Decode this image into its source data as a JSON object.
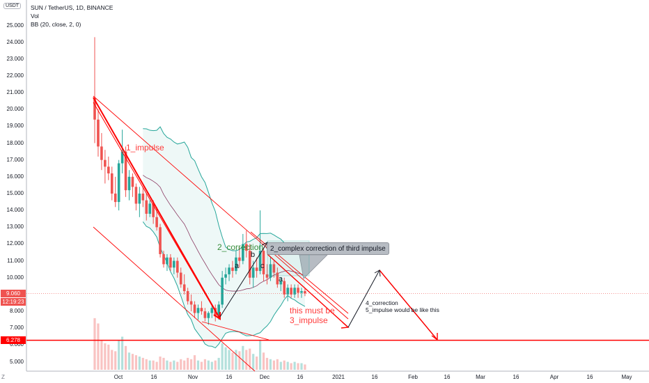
{
  "header": {
    "symbol_line": "SUN / TetherUS, 1D, BINANCE",
    "indicator1": "Vol",
    "indicator2": "BB (20, close, 2, 0)"
  },
  "unit_button": "USDT",
  "corner_label": "Z",
  "price_labels": {
    "last_price": "9.060",
    "countdown": "12:19:23",
    "level": "6.278"
  },
  "annotations": {
    "impulse1": "1_impulse",
    "correction2": "2_correction",
    "wave_a1": "a",
    "wave_b": "b",
    "wave_c": "c",
    "wave_a2": "a",
    "callout": "2_complex correction of third impulse",
    "must_be_line1": "this must be",
    "must_be_line2": "3_impulse",
    "projection_line1": "4_correction",
    "projection_line2": "5_impulse would be like this"
  },
  "colors": {
    "up": "#26a69a",
    "down": "#ef5350",
    "drawing_red": "#ff0000",
    "drawing_green": "#388e3c",
    "bb_band": "#26a69a",
    "bb_basis": "#8b3a62",
    "level_line": "#ff0000"
  },
  "chart_data": {
    "type": "candlestick",
    "title": "SUN / TetherUS, 1D, BINANCE",
    "indicators": [
      "Vol",
      "BB (20, close, 2, 0)"
    ],
    "y_ticks": [
      "5.000",
      "6.000",
      "7.000",
      "8.000",
      "9.000",
      "10.000",
      "11.000",
      "12.000",
      "13.000",
      "14.000",
      "15.000",
      "16.000",
      "17.000",
      "18.000",
      "19.000",
      "20.000",
      "21.000",
      "22.000",
      "23.000",
      "24.000",
      "25.000"
    ],
    "ylim": [
      4.2,
      25.6
    ],
    "x_ticks": [
      "Oct",
      "16",
      "Nov",
      "16",
      "Dec",
      "16",
      "2021",
      "16",
      "Feb",
      "16",
      "Mar",
      "16",
      "Apr",
      "16",
      "May"
    ],
    "last_price": 9.06,
    "horizontal_level": 6.278,
    "ohlc_approx": [
      [
        20.7,
        24.3,
        18.0,
        19.4
      ],
      [
        19.4,
        20.0,
        17.2,
        17.8
      ],
      [
        17.8,
        18.6,
        16.4,
        17.0
      ],
      [
        17.0,
        17.6,
        15.6,
        16.6
      ],
      [
        16.6,
        17.2,
        15.8,
        16.2
      ],
      [
        16.2,
        16.6,
        14.6,
        15.0
      ],
      [
        15.0,
        16.0,
        14.2,
        14.5
      ],
      [
        14.5,
        17.0,
        14.0,
        16.8
      ],
      [
        16.8,
        18.8,
        16.2,
        17.5
      ],
      [
        17.5,
        17.8,
        14.8,
        15.2
      ],
      [
        15.2,
        16.4,
        14.6,
        16.0
      ],
      [
        16.0,
        16.2,
        14.8,
        15.4
      ],
      [
        15.4,
        15.6,
        14.0,
        14.4
      ],
      [
        14.4,
        15.4,
        13.6,
        15.0
      ],
      [
        15.0,
        15.4,
        14.2,
        14.6
      ],
      [
        14.6,
        15.0,
        13.4,
        13.8
      ],
      [
        13.8,
        14.6,
        13.6,
        14.4
      ],
      [
        14.4,
        14.6,
        13.2,
        13.6
      ],
      [
        13.6,
        14.2,
        12.8,
        13.0
      ],
      [
        13.0,
        13.2,
        11.2,
        11.4
      ],
      [
        11.4,
        11.6,
        10.6,
        10.8
      ],
      [
        10.8,
        11.4,
        10.4,
        11.2
      ],
      [
        11.2,
        11.4,
        10.4,
        10.6
      ],
      [
        10.6,
        11.2,
        10.2,
        11.0
      ],
      [
        11.0,
        11.2,
        10.0,
        10.3
      ],
      [
        10.3,
        10.6,
        9.4,
        9.6
      ],
      [
        9.6,
        10.2,
        9.0,
        9.2
      ],
      [
        9.2,
        9.4,
        8.4,
        8.6
      ],
      [
        8.6,
        9.0,
        8.0,
        8.4
      ],
      [
        8.4,
        8.6,
        7.6,
        7.9
      ],
      [
        7.9,
        8.4,
        7.5,
        8.2
      ],
      [
        8.2,
        8.6,
        7.8,
        8.0
      ],
      [
        8.0,
        8.2,
        7.4,
        7.6
      ],
      [
        7.6,
        8.0,
        7.2,
        7.9
      ],
      [
        7.9,
        8.4,
        7.6,
        8.2
      ],
      [
        8.2,
        8.4,
        7.4,
        7.7
      ],
      [
        7.7,
        8.6,
        7.5,
        8.4
      ],
      [
        8.4,
        10.4,
        8.2,
        10.0
      ],
      [
        10.0,
        10.6,
        9.6,
        10.2
      ],
      [
        10.2,
        10.8,
        9.8,
        10.6
      ],
      [
        10.6,
        11.0,
        10.0,
        10.4
      ],
      [
        10.4,
        11.6,
        10.2,
        11.2
      ],
      [
        11.2,
        11.8,
        10.6,
        11.0
      ],
      [
        11.0,
        12.6,
        10.8,
        12.0
      ],
      [
        12.0,
        12.8,
        11.2,
        11.6
      ],
      [
        11.6,
        12.0,
        9.6,
        10.0
      ],
      [
        10.0,
        11.0,
        9.4,
        10.6
      ],
      [
        10.6,
        11.2,
        10.0,
        10.4
      ],
      [
        10.4,
        14.0,
        10.2,
        11.6
      ],
      [
        11.6,
        11.8,
        9.8,
        10.2
      ],
      [
        10.2,
        10.8,
        9.6,
        10.0
      ],
      [
        10.0,
        11.2,
        9.8,
        10.8
      ],
      [
        10.8,
        11.0,
        10.0,
        10.3
      ],
      [
        10.3,
        10.6,
        9.4,
        9.6
      ],
      [
        9.6,
        10.0,
        9.2,
        9.8
      ],
      [
        9.8,
        10.0,
        8.8,
        9.0
      ],
      [
        9.0,
        9.6,
        8.6,
        9.4
      ],
      [
        9.4,
        9.6,
        8.8,
        9.0
      ],
      [
        9.0,
        9.6,
        8.8,
        9.4
      ],
      [
        9.4,
        9.6,
        8.8,
        9.1
      ],
      [
        9.1,
        9.4,
        8.8,
        9.2
      ],
      [
        9.2,
        9.4,
        8.9,
        9.06
      ]
    ]
  }
}
